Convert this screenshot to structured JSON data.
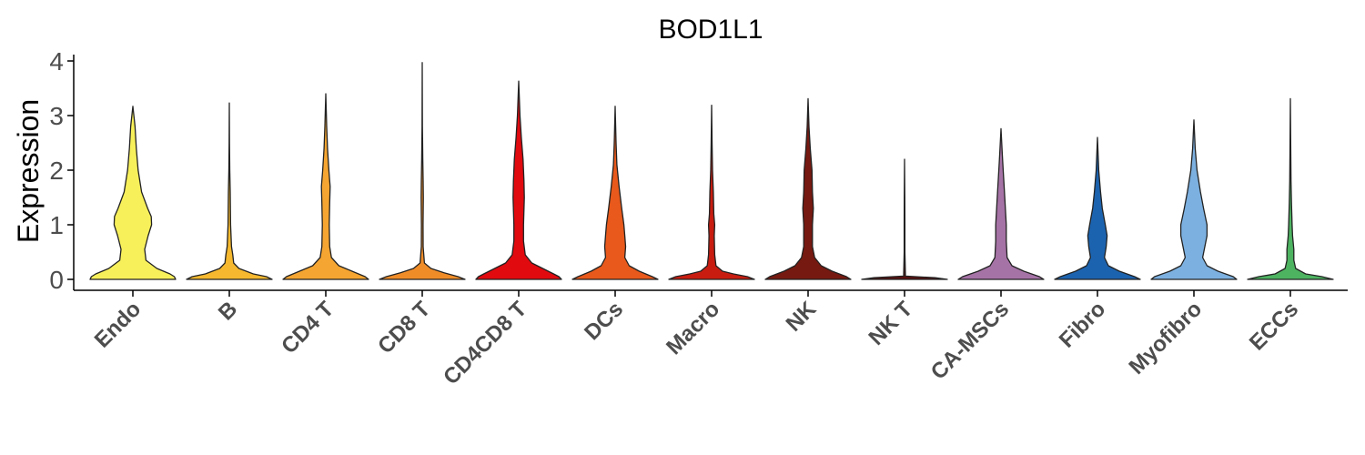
{
  "chart_data": {
    "type": "violin",
    "title": "BOD1L1",
    "xlabel": "",
    "ylabel": "Expression",
    "ylim": [
      -0.2,
      4.15
    ],
    "yticks": [
      0,
      1,
      2,
      3,
      4
    ],
    "grid": false,
    "legend": "none",
    "series": [
      {
        "category": "Endo",
        "color": "#F8F05A",
        "max": 3.17,
        "profile": [
          [
            0,
            0.98
          ],
          [
            0.05,
            0.95
          ],
          [
            0.1,
            0.85
          ],
          [
            0.2,
            0.55
          ],
          [
            0.35,
            0.3
          ],
          [
            0.55,
            0.27
          ],
          [
            0.8,
            0.35
          ],
          [
            1.0,
            0.43
          ],
          [
            1.15,
            0.42
          ],
          [
            1.3,
            0.34
          ],
          [
            1.6,
            0.2
          ],
          [
            2.0,
            0.12
          ],
          [
            2.4,
            0.08
          ],
          [
            2.8,
            0.05
          ],
          [
            3.17,
            0
          ]
        ]
      },
      {
        "category": "B",
        "color": "#F5B82E",
        "max": 3.23,
        "profile": [
          [
            0,
            0.98
          ],
          [
            0.05,
            0.85
          ],
          [
            0.1,
            0.55
          ],
          [
            0.2,
            0.22
          ],
          [
            0.3,
            0.1
          ],
          [
            0.45,
            0.08
          ],
          [
            0.6,
            0.05
          ],
          [
            0.8,
            0.04
          ],
          [
            1.0,
            0.03
          ],
          [
            1.3,
            0.025
          ],
          [
            1.6,
            0.02
          ],
          [
            2.0,
            0.01
          ],
          [
            2.5,
            0.005
          ],
          [
            3.23,
            0
          ]
        ]
      },
      {
        "category": "CD4 T",
        "color": "#F5A531",
        "max": 3.4,
        "profile": [
          [
            0,
            0.98
          ],
          [
            0.05,
            0.9
          ],
          [
            0.15,
            0.6
          ],
          [
            0.25,
            0.3
          ],
          [
            0.4,
            0.13
          ],
          [
            0.6,
            0.09
          ],
          [
            1.0,
            0.08
          ],
          [
            1.4,
            0.09
          ],
          [
            1.7,
            0.1
          ],
          [
            2.0,
            0.07
          ],
          [
            2.4,
            0.04
          ],
          [
            2.8,
            0.02
          ],
          [
            3.4,
            0
          ]
        ]
      },
      {
        "category": "CD8 T",
        "color": "#F08C28",
        "max": 3.97,
        "profile": [
          [
            0,
            0.98
          ],
          [
            0.05,
            0.82
          ],
          [
            0.12,
            0.5
          ],
          [
            0.2,
            0.2
          ],
          [
            0.3,
            0.05
          ],
          [
            0.6,
            0.02
          ],
          [
            1.0,
            0.018
          ],
          [
            1.5,
            0.025
          ],
          [
            1.8,
            0.02
          ],
          [
            2.2,
            0.012
          ],
          [
            2.8,
            0.005
          ],
          [
            3.97,
            0
          ]
        ]
      },
      {
        "category": "CD4CD8 T",
        "color": "#E00A0F",
        "max": 3.63,
        "profile": [
          [
            0,
            0.98
          ],
          [
            0.05,
            0.92
          ],
          [
            0.1,
            0.8
          ],
          [
            0.2,
            0.55
          ],
          [
            0.3,
            0.3
          ],
          [
            0.45,
            0.15
          ],
          [
            0.7,
            0.11
          ],
          [
            1.0,
            0.11
          ],
          [
            1.5,
            0.13
          ],
          [
            1.8,
            0.12
          ],
          [
            2.2,
            0.1
          ],
          [
            2.6,
            0.06
          ],
          [
            3.0,
            0.03
          ],
          [
            3.63,
            0
          ]
        ]
      },
      {
        "category": "DCs",
        "color": "#E8591B",
        "max": 3.17,
        "profile": [
          [
            0,
            0.98
          ],
          [
            0.05,
            0.85
          ],
          [
            0.15,
            0.55
          ],
          [
            0.25,
            0.32
          ],
          [
            0.4,
            0.22
          ],
          [
            0.6,
            0.24
          ],
          [
            0.8,
            0.22
          ],
          [
            1.0,
            0.2
          ],
          [
            1.3,
            0.15
          ],
          [
            1.7,
            0.09
          ],
          [
            2.1,
            0.04
          ],
          [
            2.5,
            0.02
          ],
          [
            3.17,
            0
          ]
        ]
      },
      {
        "category": "Macro",
        "color": "#C81C10",
        "max": 3.19,
        "profile": [
          [
            0,
            0.98
          ],
          [
            0.05,
            0.82
          ],
          [
            0.1,
            0.5
          ],
          [
            0.15,
            0.25
          ],
          [
            0.25,
            0.1
          ],
          [
            0.45,
            0.07
          ],
          [
            0.8,
            0.06
          ],
          [
            1.0,
            0.07
          ],
          [
            1.2,
            0.05
          ],
          [
            1.6,
            0.04
          ],
          [
            2.0,
            0.02
          ],
          [
            2.5,
            0.01
          ],
          [
            3.19,
            0
          ]
        ]
      },
      {
        "category": "NK",
        "color": "#761910",
        "max": 3.31,
        "profile": [
          [
            0,
            0.98
          ],
          [
            0.05,
            0.88
          ],
          [
            0.15,
            0.55
          ],
          [
            0.25,
            0.3
          ],
          [
            0.4,
            0.15
          ],
          [
            0.6,
            0.1
          ],
          [
            1.0,
            0.1
          ],
          [
            1.3,
            0.12
          ],
          [
            1.6,
            0.1
          ],
          [
            2.0,
            0.09
          ],
          [
            2.4,
            0.05
          ],
          [
            2.8,
            0.02
          ],
          [
            3.31,
            0
          ]
        ]
      },
      {
        "category": "NK T",
        "color": "#5A1010",
        "max": 2.2,
        "profile": [
          [
            0,
            0.98
          ],
          [
            0.03,
            0.7
          ],
          [
            0.06,
            0.02
          ],
          [
            0.5,
            0.008
          ],
          [
            1.0,
            0.008
          ],
          [
            1.5,
            0.006
          ],
          [
            2.2,
            0
          ]
        ]
      },
      {
        "category": "CA-MSCs",
        "color": "#A673A6",
        "max": 2.76,
        "profile": [
          [
            0,
            0.98
          ],
          [
            0.05,
            0.88
          ],
          [
            0.15,
            0.52
          ],
          [
            0.25,
            0.25
          ],
          [
            0.4,
            0.14
          ],
          [
            0.7,
            0.12
          ],
          [
            1.0,
            0.12
          ],
          [
            1.3,
            0.1
          ],
          [
            1.6,
            0.08
          ],
          [
            2.0,
            0.05
          ],
          [
            2.3,
            0.03
          ],
          [
            2.76,
            0
          ]
        ]
      },
      {
        "category": "Fibro",
        "color": "#1C63AF",
        "max": 2.6,
        "profile": [
          [
            0,
            0.98
          ],
          [
            0.05,
            0.85
          ],
          [
            0.15,
            0.5
          ],
          [
            0.25,
            0.25
          ],
          [
            0.4,
            0.16
          ],
          [
            0.6,
            0.2
          ],
          [
            0.8,
            0.22
          ],
          [
            1.0,
            0.18
          ],
          [
            1.3,
            0.11
          ],
          [
            1.6,
            0.07
          ],
          [
            2.0,
            0.03
          ],
          [
            2.6,
            0
          ]
        ]
      },
      {
        "category": "Myofibro",
        "color": "#7CB0E0",
        "max": 2.92,
        "profile": [
          [
            0,
            0.98
          ],
          [
            0.05,
            0.9
          ],
          [
            0.15,
            0.55
          ],
          [
            0.25,
            0.3
          ],
          [
            0.4,
            0.2
          ],
          [
            0.6,
            0.25
          ],
          [
            0.8,
            0.3
          ],
          [
            1.0,
            0.3
          ],
          [
            1.3,
            0.22
          ],
          [
            1.6,
            0.15
          ],
          [
            2.0,
            0.07
          ],
          [
            2.4,
            0.03
          ],
          [
            2.92,
            0
          ]
        ]
      },
      {
        "category": "ECCs",
        "color": "#4DB361",
        "max": 3.31,
        "profile": [
          [
            0,
            0.98
          ],
          [
            0.05,
            0.72
          ],
          [
            0.1,
            0.35
          ],
          [
            0.2,
            0.12
          ],
          [
            0.35,
            0.08
          ],
          [
            0.55,
            0.08
          ],
          [
            0.8,
            0.05
          ],
          [
            1.0,
            0.04
          ],
          [
            1.4,
            0.025
          ],
          [
            1.8,
            0.015
          ],
          [
            2.4,
            0.008
          ],
          [
            3.31,
            0
          ]
        ]
      }
    ]
  }
}
